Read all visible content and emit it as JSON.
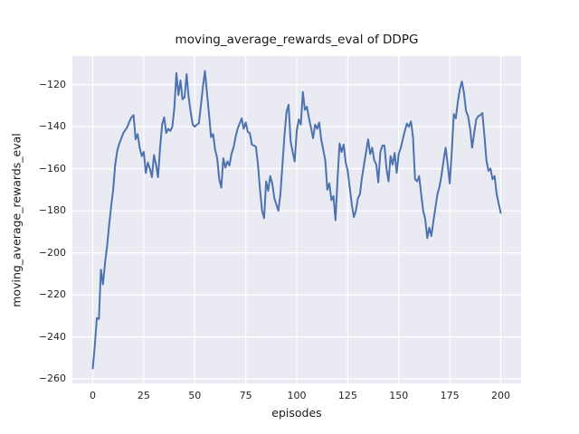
{
  "figure": {
    "background": "#ffffff"
  },
  "chart_data": {
    "type": "line",
    "title": "moving_average_rewards_eval of DDPG",
    "xlabel": "episodes",
    "ylabel": "moving_average_rewards_eval",
    "grid": true,
    "legend": "none",
    "plot_background": "#eaeaf2",
    "grid_color": "#ffffff",
    "text_color": "#262626",
    "xlim": [
      -10,
      210
    ],
    "ylim": [
      -262.1,
      -106.4
    ],
    "xticks": [
      0,
      25,
      50,
      75,
      100,
      125,
      150,
      175,
      200
    ],
    "yticks": [
      -260,
      -240,
      -220,
      -200,
      -180,
      -160,
      -140,
      -120
    ],
    "series": [
      {
        "name": "moving_average_rewards_eval",
        "color": "#4c72b0",
        "line_width": 2,
        "x_start": 0,
        "x_step": 1,
        "n_points": 201,
        "values": [
          -255,
          -244,
          -231,
          -231.5,
          -208,
          -215,
          -205,
          -197,
          -187,
          -178,
          -170,
          -158,
          -151.5,
          -148,
          -145.5,
          -143,
          -141.5,
          -140,
          -137.5,
          -135.5,
          -134.5,
          -146,
          -143.5,
          -150,
          -154,
          -152,
          -162,
          -157,
          -160,
          -164,
          -153.5,
          -158,
          -164,
          -150,
          -139,
          -135.5,
          -143,
          -141,
          -142,
          -140,
          -131,
          -114.5,
          -125,
          -118,
          -127,
          -126,
          -115,
          -126,
          -133,
          -139,
          -140,
          -139,
          -138.5,
          -130,
          -121,
          -113.5,
          -124,
          -134,
          -145,
          -143.5,
          -151,
          -155,
          -165,
          -169,
          -155,
          -159.5,
          -156.5,
          -158.5,
          -153,
          -150,
          -145,
          -141,
          -138.5,
          -136,
          -141,
          -138,
          -142.5,
          -143,
          -148.5,
          -149,
          -149.5,
          -158,
          -170,
          -180,
          -183.5,
          -166,
          -170.5,
          -163.5,
          -167,
          -174,
          -177,
          -180,
          -172,
          -158,
          -144,
          -133,
          -129.5,
          -147,
          -152,
          -156.5,
          -142,
          -136.5,
          -139,
          -123.5,
          -132,
          -130.5,
          -136,
          -140.5,
          -145.5,
          -139,
          -141,
          -138,
          -146,
          -151,
          -156,
          -170,
          -167,
          -175,
          -173,
          -184.5,
          -165,
          -148,
          -152,
          -148.5,
          -157,
          -161,
          -169,
          -177,
          -183,
          -180,
          -174,
          -172,
          -164,
          -158,
          -152,
          -146,
          -153,
          -150,
          -156,
          -158,
          -166.5,
          -152,
          -149,
          -149,
          -160,
          -166,
          -154,
          -158,
          -152.5,
          -162,
          -153,
          -150,
          -146,
          -142,
          -138.5,
          -140,
          -137.5,
          -145,
          -165,
          -166,
          -163.5,
          -172,
          -180,
          -184,
          -193,
          -188,
          -192,
          -185,
          -178.5,
          -172,
          -168.5,
          -163,
          -156,
          -150,
          -158,
          -167,
          -152,
          -134,
          -136,
          -128,
          -122,
          -118.5,
          -124,
          -132.5,
          -135,
          -141,
          -150,
          -143,
          -136.5,
          -135,
          -134.5,
          -133.5,
          -144,
          -156,
          -161,
          -160,
          -165,
          -163.5,
          -172,
          -176.5,
          -181
        ]
      }
    ]
  }
}
